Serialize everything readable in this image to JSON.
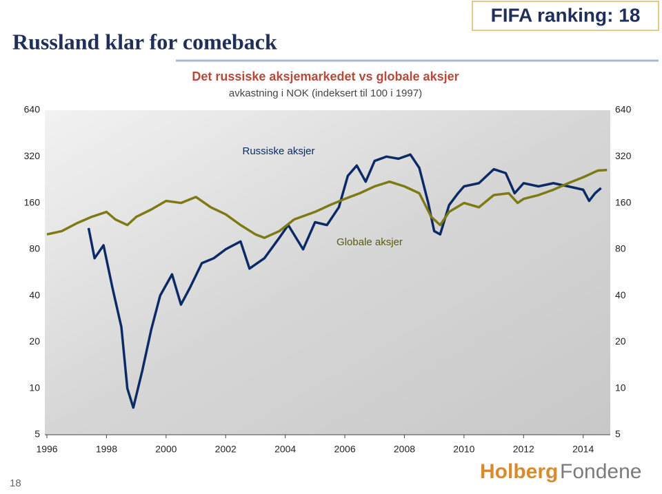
{
  "slide": {
    "title": "Russland klar for comeback",
    "badge": "FIFA ranking: 18",
    "page": "18",
    "logo_a": "Holberg",
    "logo_b": "Fondene"
  },
  "chart_data": {
    "type": "line",
    "title": "Det russiske aksjemarkedet vs globale aksjer",
    "subtitle": "avkastning i NOK (indeksert til 100 i 1997)",
    "log_scale": true,
    "xlim": [
      1995.93,
      2014.91
    ],
    "xticks": [
      1996,
      1998,
      2000,
      2002,
      2004,
      2006,
      2008,
      2010,
      2012,
      2014
    ],
    "ylim": [
      5,
      640
    ],
    "yticks": [
      5,
      10,
      20,
      40,
      80,
      160,
      320,
      640
    ],
    "series": [
      {
        "name": "Russiske aksjer",
        "color": "#0b2a66",
        "x": [
          1997.4,
          1997.6,
          1997.9,
          1998.2,
          1998.5,
          1998.7,
          1998.9,
          1999.2,
          1999.5,
          1999.8,
          2000.2,
          2000.5,
          2000.8,
          2001.2,
          2001.6,
          2002.0,
          2002.5,
          2002.8,
          2003.3,
          2003.8,
          2004.1,
          2004.6,
          2005.0,
          2005.4,
          2005.8,
          2006.1,
          2006.4,
          2006.7,
          2007.0,
          2007.4,
          2007.8,
          2008.2,
          2008.5,
          2008.8,
          2009.0,
          2009.2,
          2009.5,
          2009.8,
          2010.0,
          2010.5,
          2011.0,
          2011.4,
          2011.7,
          2012.0,
          2012.5,
          2013.0,
          2013.5,
          2014.0,
          2014.2,
          2014.4,
          2014.6
        ],
        "values": [
          110,
          70,
          85,
          45,
          25,
          10,
          7.5,
          13,
          24,
          40,
          55,
          35,
          45,
          65,
          70,
          80,
          90,
          60,
          70,
          95,
          115,
          80,
          120,
          115,
          150,
          240,
          280,
          220,
          300,
          320,
          310,
          330,
          270,
          160,
          105,
          100,
          155,
          185,
          205,
          215,
          265,
          250,
          185,
          215,
          205,
          215,
          205,
          195,
          165,
          185,
          200
        ]
      },
      {
        "name": "Globale aksjer",
        "color": "#7d7a14",
        "x": [
          1996.0,
          1996.5,
          1997.0,
          1997.5,
          1998.0,
          1998.3,
          1998.7,
          1999.0,
          1999.5,
          2000.0,
          2000.5,
          2001.0,
          2001.5,
          2002.0,
          2002.5,
          2003.0,
          2003.3,
          2003.8,
          2004.3,
          2005.0,
          2005.5,
          2006.0,
          2006.5,
          2007.0,
          2007.5,
          2008.0,
          2008.5,
          2008.9,
          2009.2,
          2009.5,
          2010.0,
          2010.5,
          2011.0,
          2011.5,
          2011.8,
          2012.0,
          2012.5,
          2013.0,
          2013.5,
          2014.0,
          2014.5,
          2014.8
        ],
        "values": [
          100,
          105,
          118,
          130,
          140,
          125,
          115,
          130,
          145,
          165,
          160,
          175,
          150,
          135,
          115,
          100,
          95,
          105,
          125,
          140,
          155,
          170,
          185,
          205,
          220,
          205,
          185,
          130,
          115,
          140,
          160,
          150,
          180,
          185,
          160,
          170,
          180,
          195,
          215,
          235,
          260,
          262
        ]
      }
    ]
  }
}
